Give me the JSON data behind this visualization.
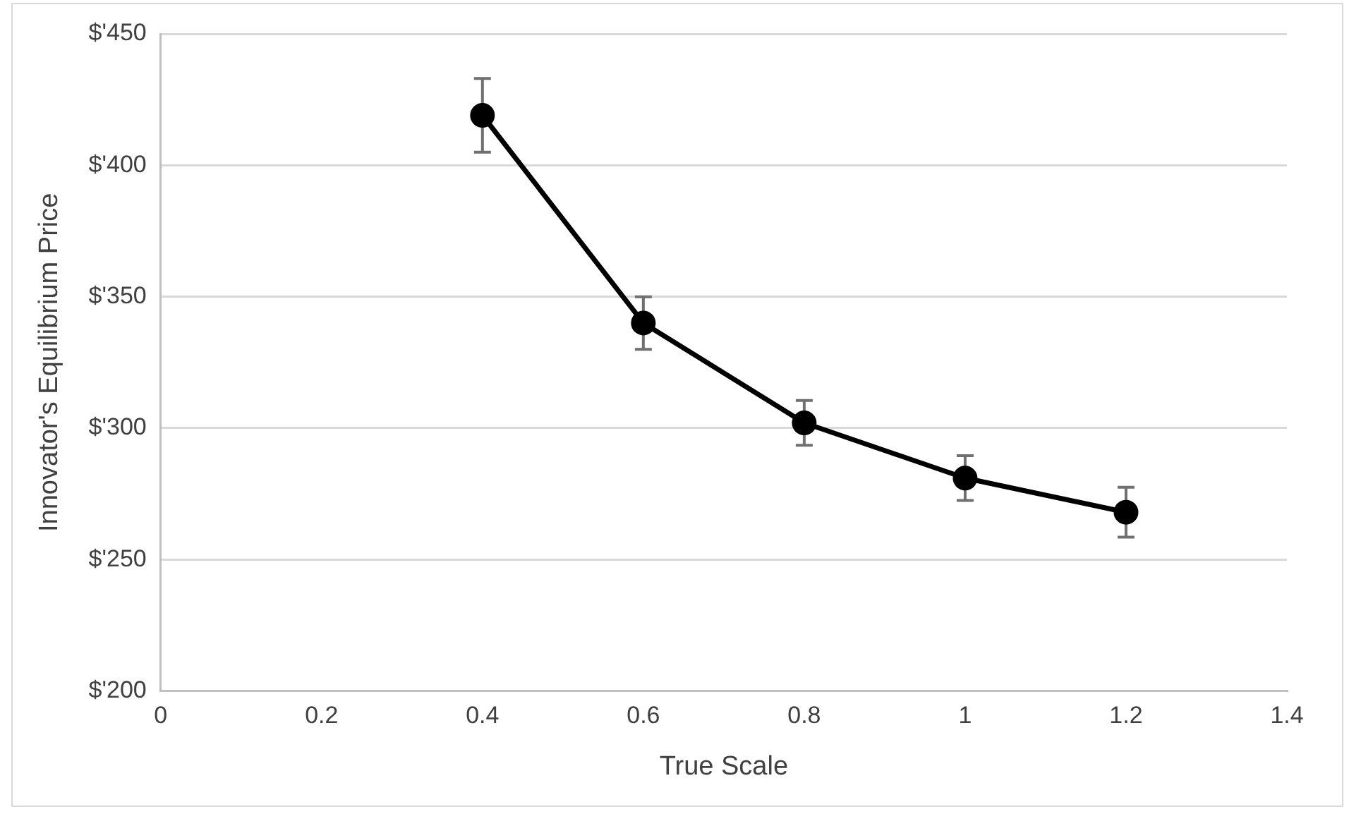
{
  "chart_data": {
    "type": "line",
    "xlabel": "True Scale",
    "ylabel": "Innovator's Equilibrium Price",
    "x": [
      0.4,
      0.6,
      0.8,
      1,
      1.2
    ],
    "series": [
      {
        "color": "#000000",
        "values": [
          419,
          340,
          302,
          281,
          268
        ],
        "errors": [
          14,
          10,
          8.5,
          8.5,
          9.5
        ]
      }
    ],
    "xlim": [
      0,
      1.4
    ],
    "xticks": [
      0,
      0.2,
      0.4,
      0.6,
      0.8,
      1,
      1.2,
      1.4
    ],
    "ylim": [
      200,
      450
    ],
    "yticks": [
      {
        "value": 200,
        "label": "$'200"
      },
      {
        "value": 250,
        "label": "$'250"
      },
      {
        "value": 300,
        "label": "$'300"
      },
      {
        "value": 350,
        "label": "$'350"
      },
      {
        "value": 400,
        "label": "$'400"
      },
      {
        "value": 450,
        "label": "$'450"
      }
    ],
    "grid": "y",
    "marker": "circle",
    "line_style": "solid",
    "legend": false
  }
}
